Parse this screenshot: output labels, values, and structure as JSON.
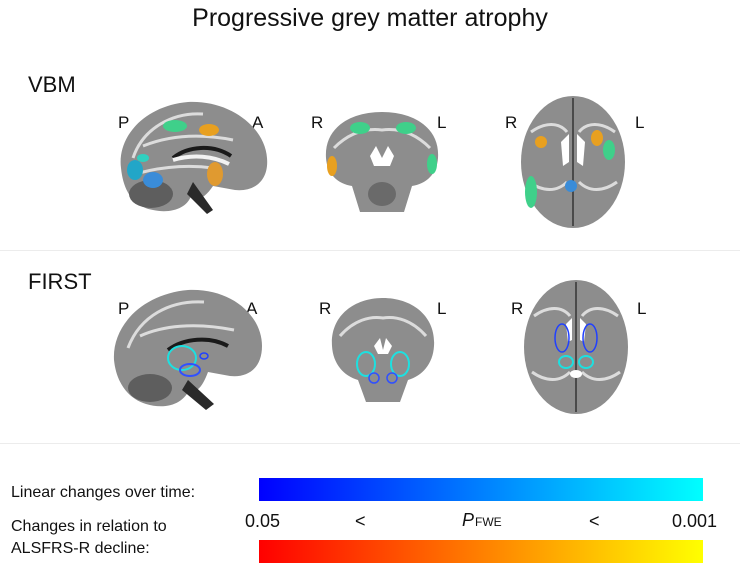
{
  "title": "Progressive grey matter atrophy",
  "rows": [
    {
      "label": "VBM",
      "views": [
        {
          "orientation": "sagittal",
          "left_label": "P",
          "right_label": "A"
        },
        {
          "orientation": "coronal",
          "left_label": "R",
          "right_label": "L"
        },
        {
          "orientation": "axial",
          "left_label": "R",
          "right_label": "L"
        }
      ]
    },
    {
      "label": "FIRST",
      "views": [
        {
          "orientation": "sagittal",
          "left_label": "P",
          "right_label": "A"
        },
        {
          "orientation": "coronal",
          "left_label": "R",
          "right_label": "L"
        },
        {
          "orientation": "axial",
          "left_label": "R",
          "right_label": "L"
        }
      ]
    }
  ],
  "legend": {
    "linear_label": "Linear changes over time:",
    "relation_label_line1": "Changes in relation to",
    "relation_label_line2": "ALSFRS-R decline:",
    "tick_low": "0.05",
    "lt1": "<",
    "p_symbol": "P",
    "p_subscript": "FWE",
    "lt2": "<",
    "tick_high": "0.001",
    "linear_colors": [
      "#0000ff",
      "#00ffff"
    ],
    "relation_colors": [
      "#ff0000",
      "#ffff00"
    ]
  }
}
